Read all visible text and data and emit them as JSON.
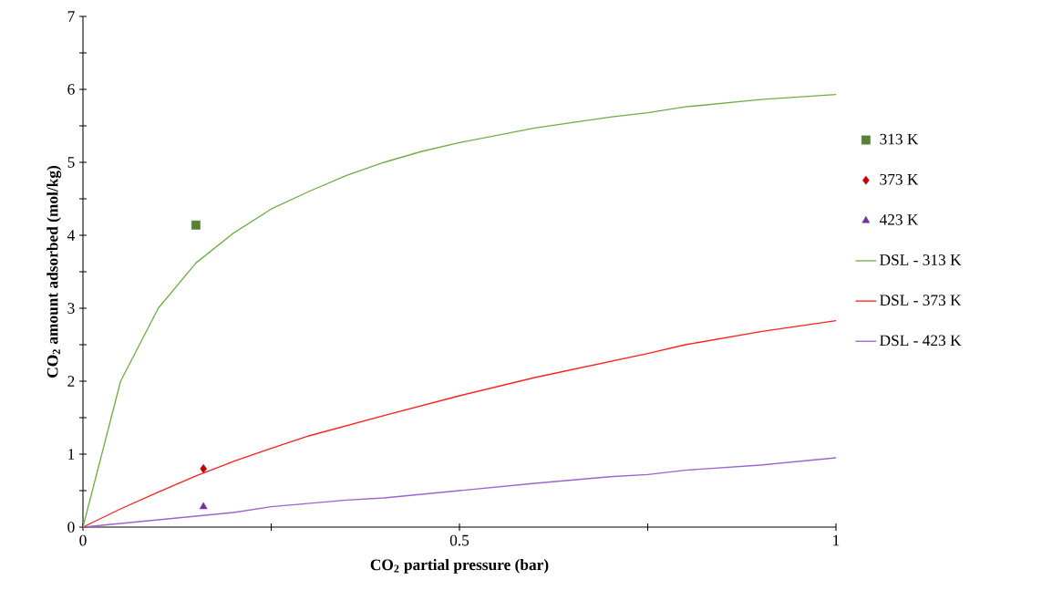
{
  "chart_data": {
    "type": "line",
    "xlabel": "CO$_{2}$ partial pressure (bar)",
    "ylabel": "CO$_{2}$ amount adsorbed (mol/kg)",
    "xlim": [
      0,
      1
    ],
    "ylim": [
      0,
      7
    ],
    "xticks": [
      0,
      {
        "value": 0.25,
        "label": null
      },
      0.5,
      {
        "value": 0.75,
        "label": null
      },
      1
    ],
    "yticks": [
      0,
      {
        "value": 0.5,
        "label": null
      },
      1,
      {
        "value": 1.5,
        "label": null
      },
      2,
      {
        "value": 2.5,
        "label": null
      },
      3,
      {
        "value": 3.5,
        "label": null
      },
      4,
      {
        "value": 4.5,
        "label": null
      },
      5,
      {
        "value": 5.5,
        "label": null
      },
      6,
      {
        "value": 6.5,
        "label": null
      },
      7
    ],
    "grid": false,
    "legend": "right",
    "series": [
      {
        "name": "313 K",
        "type": "scatter",
        "marker": "square",
        "color": "#548235",
        "x": [
          0.15
        ],
        "values": [
          4.14
        ]
      },
      {
        "name": "373 K",
        "type": "scatter",
        "marker": "diamond",
        "color": "#c00000",
        "x": [
          0.16
        ],
        "values": [
          0.8
        ]
      },
      {
        "name": "423 K",
        "type": "scatter",
        "marker": "triangle",
        "color": "#7030a0",
        "x": [
          0.16
        ],
        "values": [
          0.28
        ]
      },
      {
        "name": "DSL - 313 K",
        "marker": "none",
        "color": "#70ad47",
        "x": [
          0,
          0.05,
          0.1,
          0.15,
          0.2,
          0.25,
          0.3,
          0.35,
          0.4,
          0.45,
          0.5,
          0.6,
          0.7,
          0.75,
          0.8,
          0.9,
          1
        ],
        "values": [
          0,
          2.0,
          3.0,
          3.62,
          4.03,
          4.36,
          4.6,
          4.82,
          5.0,
          5.15,
          5.27,
          5.47,
          5.62,
          5.68,
          5.76,
          5.86,
          5.93
        ]
      },
      {
        "name": "DSL - 373 K",
        "marker": "none",
        "color": "#ff2020",
        "x": [
          0,
          0.05,
          0.1,
          0.15,
          0.2,
          0.25,
          0.3,
          0.4,
          0.5,
          0.6,
          0.75,
          0.8,
          0.9,
          1
        ],
        "values": [
          0,
          0.25,
          0.48,
          0.7,
          0.9,
          1.08,
          1.25,
          1.53,
          1.8,
          2.05,
          2.38,
          2.5,
          2.68,
          2.83
        ]
      },
      {
        "name": "DSL - 423 K",
        "marker": "none",
        "color": "#9966cc",
        "x": [
          0,
          0.05,
          0.1,
          0.15,
          0.2,
          0.25,
          0.35,
          0.4,
          0.5,
          0.6,
          0.7,
          0.75,
          0.8,
          0.9,
          1
        ],
        "values": [
          0,
          0.05,
          0.1,
          0.15,
          0.2,
          0.28,
          0.37,
          0.4,
          0.5,
          0.6,
          0.69,
          0.72,
          0.78,
          0.85,
          0.95
        ]
      }
    ]
  }
}
